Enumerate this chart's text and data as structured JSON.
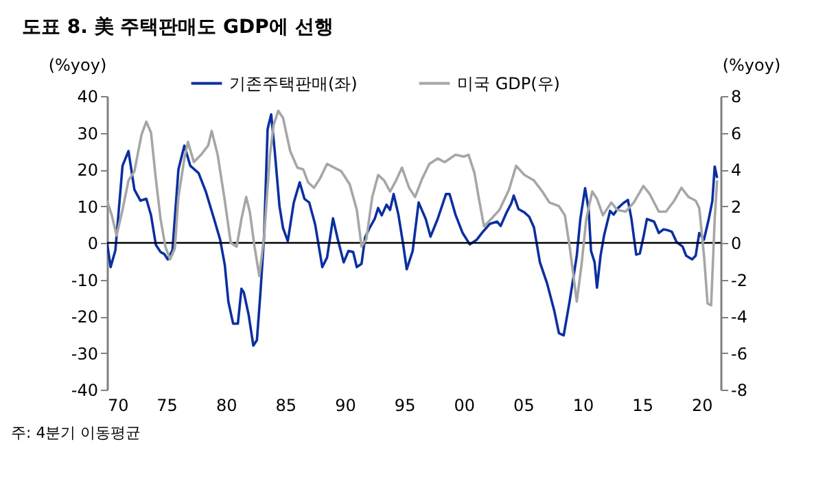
{
  "chart_data": {
    "type": "line",
    "title": "도표 8.  美 주택판매도 GDP에 선행",
    "ylabel": "(%yoy)",
    "y2label": "(%yoy)",
    "annotations": [
      "주: 4분기 이동평균"
    ],
    "xlim": [
      1970,
      2021.6
    ],
    "xticks": [
      {
        "value": 1970,
        "label": "70"
      },
      {
        "value": 1975,
        "label": "75"
      },
      {
        "value": 1980,
        "label": "80"
      },
      {
        "value": 1985,
        "label": "85"
      },
      {
        "value": 1990,
        "label": "90"
      },
      {
        "value": 1995,
        "label": "95"
      },
      {
        "value": 2000,
        "label": "00"
      },
      {
        "value": 2005,
        "label": "05"
      },
      {
        "value": 2010,
        "label": "10"
      },
      {
        "value": 2015,
        "label": "15"
      },
      {
        "value": 2020,
        "label": "20"
      }
    ],
    "ylim": [
      -40,
      40
    ],
    "yticks": [
      -40,
      -30,
      -20,
      -10,
      0,
      10,
      20,
      30,
      40
    ],
    "y2lim": [
      -8,
      8
    ],
    "y2ticks": [
      -8,
      -6,
      -4,
      -2,
      0,
      2,
      4,
      6,
      8
    ],
    "grid": false,
    "legend": "top",
    "marker": "none",
    "line_style": "solid",
    "ref_lines": [
      {
        "axis": "y",
        "value": 0,
        "color": "#000000"
      }
    ],
    "series": [
      {
        "name": "기존주택판매(좌)",
        "color": "#0b2fa0",
        "x": [
          1970.0,
          1970.3,
          1970.7,
          1971.3,
          1971.8,
          1972.3,
          1972.8,
          1973.3,
          1973.7,
          1974.1,
          1974.5,
          1974.8,
          1975.1,
          1975.5,
          1976.0,
          1976.5,
          1977.0,
          1977.7,
          1978.3,
          1979.0,
          1979.5,
          1979.9,
          1980.2,
          1980.6,
          1981.0,
          1981.3,
          1981.5,
          1981.9,
          1982.3,
          1982.6,
          1982.9,
          1983.2,
          1983.5,
          1983.8,
          1984.1,
          1984.5,
          1984.8,
          1985.2,
          1985.7,
          1986.2,
          1986.6,
          1987.0,
          1987.5,
          1988.1,
          1988.5,
          1989.0,
          1989.4,
          1989.9,
          1990.3,
          1990.7,
          1991.0,
          1991.4,
          1991.7,
          1992.1,
          1992.5,
          1992.8,
          1993.1,
          1993.5,
          1993.8,
          1994.1,
          1994.5,
          1994.9,
          1995.2,
          1995.7,
          1996.2,
          1996.8,
          1997.2,
          1997.8,
          1998.5,
          1998.8,
          1999.3,
          1999.9,
          2000.5,
          2001.1,
          2001.6,
          2002.2,
          2002.8,
          2003.1,
          2003.6,
          2004.0,
          2004.2,
          2004.6,
          2005.1,
          2005.5,
          2005.9,
          2006.4,
          2007.0,
          2007.6,
          2008.0,
          2008.4,
          2008.9,
          2009.5,
          2009.8,
          2010.2,
          2010.5,
          2010.7,
          2011.0,
          2011.2,
          2011.5,
          2011.8,
          2012.3,
          2012.6,
          2013.0,
          2013.4,
          2013.8,
          2014.1,
          2014.5,
          2014.8,
          2015.1,
          2015.4,
          2016.0,
          2016.4,
          2016.8,
          2017.2,
          2017.5,
          2017.9,
          2018.4,
          2018.7,
          2019.2,
          2019.5,
          2019.8,
          2020.2,
          2020.6,
          2020.9,
          2021.1,
          2021.3
        ],
        "values": [
          0,
          -6.6,
          -2,
          21,
          25,
          14.5,
          11.5,
          12,
          7.5,
          -0.5,
          -2.5,
          -3,
          -4.5,
          -2,
          20,
          26.5,
          21,
          19,
          14,
          6.5,
          1,
          -6,
          -16,
          -22,
          -22,
          -12.5,
          -13.5,
          -19.5,
          -28,
          -26.5,
          -13.5,
          1.5,
          31,
          35,
          25,
          10,
          4,
          0.5,
          11,
          16.5,
          12,
          11,
          5,
          -6.6,
          -4,
          6.7,
          1,
          -5.3,
          -2.2,
          -2.5,
          -6.6,
          -5.7,
          1.5,
          4.2,
          6.5,
          9.5,
          7.5,
          10.4,
          9,
          13.3,
          7.7,
          -0.4,
          -7.2,
          -2.2,
          11,
          6.5,
          1.7,
          6.5,
          13.3,
          13.3,
          7.7,
          2.7,
          -0.4,
          0.9,
          3,
          5.2,
          5.8,
          4.6,
          8.3,
          10.8,
          12.9,
          9.2,
          8.3,
          7.1,
          4.2,
          -5.3,
          -11,
          -18.4,
          -24.6,
          -25.2,
          -15.9,
          -3.5,
          6.5,
          14.9,
          9,
          -2.2,
          -5.3,
          -12.2,
          -3.5,
          2.1,
          8.7,
          7.7,
          9.6,
          10.8,
          11.7,
          6.5,
          -3.2,
          -2.9,
          1.5,
          6.5,
          5.8,
          2.7,
          3.7,
          3.4,
          3,
          0.2,
          -1,
          -3.5,
          -4.5,
          -3.5,
          2.7,
          0.9,
          6.5,
          11.4,
          20.8,
          17.7
        ]
      },
      {
        "name": "미국 GDP(우)",
        "color": "#a6a6a6",
        "axis": "y2",
        "x": [
          1970.0,
          1970.4,
          1970.8,
          1971.3,
          1971.8,
          1972.3,
          1972.9,
          1973.3,
          1973.7,
          1974.1,
          1974.5,
          1974.9,
          1975.3,
          1975.7,
          1976.0,
          1976.5,
          1976.8,
          1977.3,
          1977.9,
          1978.5,
          1978.8,
          1979.3,
          1979.9,
          1980.4,
          1980.9,
          1981.3,
          1981.7,
          1982.0,
          1982.4,
          1982.8,
          1983.2,
          1983.7,
          1984.0,
          1984.4,
          1984.8,
          1985.4,
          1986.0,
          1986.5,
          1986.9,
          1987.4,
          1987.9,
          1988.5,
          1989.1,
          1989.7,
          1990.4,
          1991.0,
          1991.4,
          1991.8,
          1992.3,
          1992.8,
          1993.3,
          1993.8,
          1994.3,
          1994.8,
          1995.4,
          1995.9,
          1996.5,
          1997.1,
          1997.8,
          1998.4,
          1999.3,
          2000.0,
          2000.4,
          2000.9,
          2001.3,
          2001.7,
          2002.3,
          2003.0,
          2003.8,
          2004.4,
          2005.1,
          2005.9,
          2006.6,
          2007.2,
          2008.0,
          2008.5,
          2008.9,
          2009.5,
          2009.9,
          2010.3,
          2010.8,
          2011.2,
          2011.7,
          2012.4,
          2012.9,
          2013.6,
          2014.3,
          2015.1,
          2015.6,
          2016.4,
          2017.0,
          2017.7,
          2018.3,
          2018.9,
          2019.5,
          2019.8,
          2020.2,
          2020.5,
          2020.8,
          2021.1,
          2021.3
        ],
        "values": [
          2.3,
          1.5,
          0.4,
          1.8,
          3.4,
          3.9,
          5.9,
          6.6,
          6.0,
          3.5,
          1.3,
          -0.2,
          -0.9,
          -0.3,
          2.5,
          4.6,
          5.5,
          4.4,
          4.8,
          5.3,
          6.1,
          4.8,
          2.3,
          0.0,
          -0.2,
          1.3,
          2.5,
          1.7,
          -0.2,
          -1.8,
          0.3,
          4.8,
          6.4,
          7.2,
          6.8,
          5.0,
          4.1,
          4.0,
          3.3,
          3.0,
          3.5,
          4.3,
          4.1,
          3.9,
          3.2,
          1.8,
          -0.2,
          0.2,
          2.5,
          3.7,
          3.4,
          2.8,
          3.4,
          4.1,
          3.0,
          2.5,
          3.5,
          4.3,
          4.6,
          4.4,
          4.8,
          4.7,
          4.8,
          3.8,
          2.3,
          0.9,
          1.3,
          1.8,
          2.9,
          4.2,
          3.7,
          3.4,
          2.8,
          2.2,
          2.0,
          1.5,
          -0.2,
          -3.2,
          -1.2,
          1.3,
          2.8,
          2.4,
          1.5,
          2.2,
          1.8,
          1.7,
          2.2,
          3.1,
          2.7,
          1.7,
          1.7,
          2.3,
          3.0,
          2.5,
          2.3,
          1.9,
          -0.7,
          -3.3,
          -3.4,
          1.3,
          3.4
        ]
      }
    ]
  }
}
